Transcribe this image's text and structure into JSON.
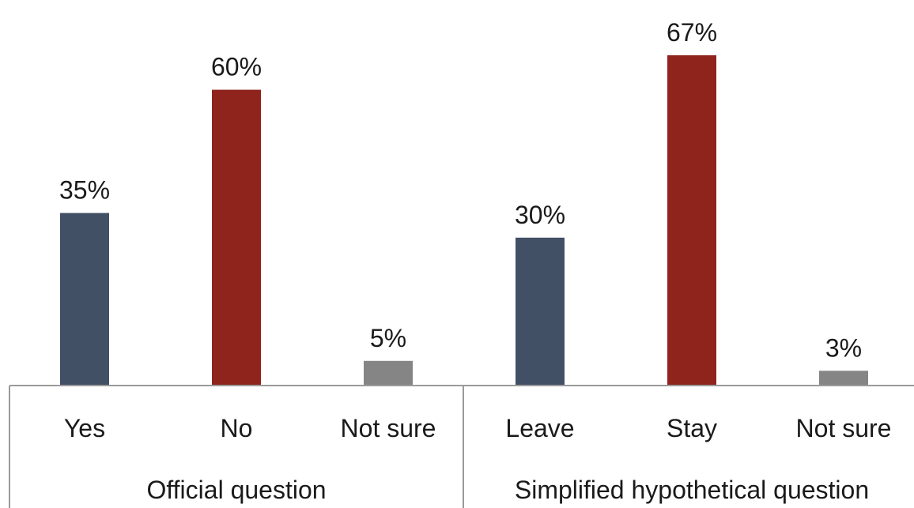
{
  "chart_data": {
    "type": "bar",
    "groups": [
      {
        "name": "Official question",
        "categories": [
          "Yes",
          "No",
          "Not sure"
        ],
        "values": [
          35,
          60,
          5
        ],
        "value_labels": [
          "35%",
          "60%",
          "5%"
        ]
      },
      {
        "name": "Simplified hypothetical question",
        "categories": [
          "Leave",
          "Stay",
          "Not sure"
        ],
        "values": [
          30,
          67,
          3
        ],
        "value_labels": [
          "30%",
          "67%",
          "3%"
        ]
      }
    ],
    "ylim": [
      0,
      70
    ],
    "unit": "%",
    "grid": false,
    "legend": "none",
    "colors": {
      "positive_exit": "#425066",
      "remain": "#8f241d",
      "not_sure": "#858585"
    },
    "bar_color_keys": [
      [
        "positive_exit",
        "remain",
        "not_sure"
      ],
      [
        "positive_exit",
        "remain",
        "not_sure"
      ]
    ]
  }
}
